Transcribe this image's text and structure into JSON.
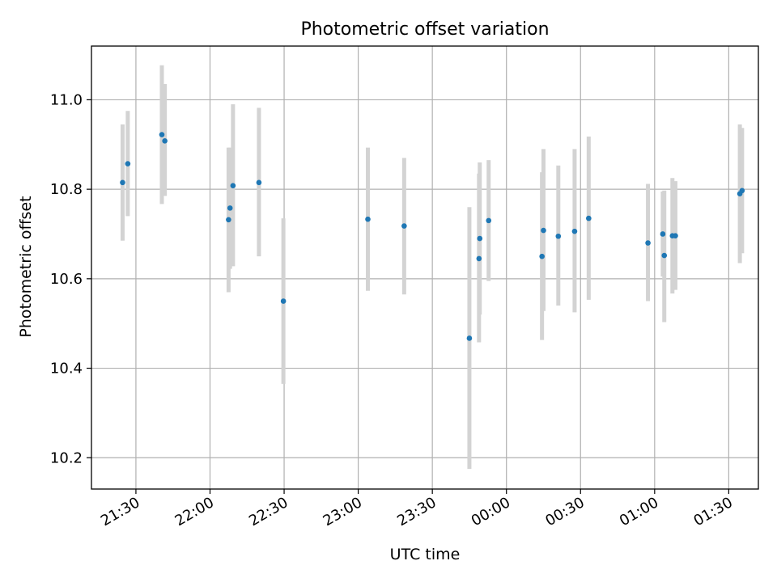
{
  "chart_data": {
    "type": "scatter",
    "title": "Photometric offset variation",
    "xlabel": "UTC time",
    "ylabel": "Photometric offset",
    "x_unit": "hours after 21:30",
    "xlim": [
      -0.3,
      4.2
    ],
    "ylim": [
      10.13,
      11.12
    ],
    "grid": true,
    "x_ticks": [
      {
        "value": 0.0,
        "label": "21:30"
      },
      {
        "value": 0.5,
        "label": "22:00"
      },
      {
        "value": 1.0,
        "label": "22:30"
      },
      {
        "value": 1.5,
        "label": "23:00"
      },
      {
        "value": 2.0,
        "label": "23:30"
      },
      {
        "value": 2.5,
        "label": "00:00"
      },
      {
        "value": 3.0,
        "label": "00:30"
      },
      {
        "value": 3.5,
        "label": "01:00"
      },
      {
        "value": 4.0,
        "label": "01:30"
      }
    ],
    "y_ticks": [
      {
        "value": 10.2,
        "label": "10.2"
      },
      {
        "value": 10.4,
        "label": "10.4"
      },
      {
        "value": 10.6,
        "label": "10.6"
      },
      {
        "value": 10.8,
        "label": "10.8"
      },
      {
        "value": 11.0,
        "label": "11.0"
      }
    ],
    "series": [
      {
        "color": "#1f77b4",
        "error_color": "#d3d3d3",
        "points": [
          {
            "x": -0.09,
            "y": 10.815,
            "lo": 10.685,
            "hi": 10.945
          },
          {
            "x": -0.055,
            "y": 10.857,
            "lo": 10.74,
            "hi": 10.975
          },
          {
            "x": 0.175,
            "y": 10.922,
            "lo": 10.767,
            "hi": 11.077
          },
          {
            "x": 0.195,
            "y": 10.908,
            "lo": 10.785,
            "hi": 11.035
          },
          {
            "x": 0.625,
            "y": 10.732,
            "lo": 10.57,
            "hi": 10.893
          },
          {
            "x": 0.635,
            "y": 10.758,
            "lo": 10.622,
            "hi": 10.893
          },
          {
            "x": 0.655,
            "y": 10.808,
            "lo": 10.628,
            "hi": 10.99
          },
          {
            "x": 0.83,
            "y": 10.815,
            "lo": 10.65,
            "hi": 10.982
          },
          {
            "x": 0.995,
            "y": 10.55,
            "lo": 10.365,
            "hi": 10.735
          },
          {
            "x": 1.565,
            "y": 10.733,
            "lo": 10.573,
            "hi": 10.893
          },
          {
            "x": 1.81,
            "y": 10.718,
            "lo": 10.565,
            "hi": 10.87
          },
          {
            "x": 2.25,
            "y": 10.467,
            "lo": 10.175,
            "hi": 10.76
          },
          {
            "x": 2.315,
            "y": 10.645,
            "lo": 10.458,
            "hi": 10.835
          },
          {
            "x": 2.32,
            "y": 10.69,
            "lo": 10.52,
            "hi": 10.86
          },
          {
            "x": 2.38,
            "y": 10.73,
            "lo": 10.595,
            "hi": 10.865
          },
          {
            "x": 2.74,
            "y": 10.65,
            "lo": 10.463,
            "hi": 10.838
          },
          {
            "x": 2.75,
            "y": 10.708,
            "lo": 10.528,
            "hi": 10.89
          },
          {
            "x": 2.85,
            "y": 10.695,
            "lo": 10.54,
            "hi": 10.853
          },
          {
            "x": 2.96,
            "y": 10.706,
            "lo": 10.525,
            "hi": 10.89
          },
          {
            "x": 3.055,
            "y": 10.735,
            "lo": 10.553,
            "hi": 10.918
          },
          {
            "x": 3.455,
            "y": 10.68,
            "lo": 10.55,
            "hi": 10.812
          },
          {
            "x": 3.555,
            "y": 10.7,
            "lo": 10.605,
            "hi": 10.795
          },
          {
            "x": 3.565,
            "y": 10.652,
            "lo": 10.503,
            "hi": 10.797
          },
          {
            "x": 3.62,
            "y": 10.696,
            "lo": 10.567,
            "hi": 10.825
          },
          {
            "x": 3.64,
            "y": 10.696,
            "lo": 10.575,
            "hi": 10.818
          },
          {
            "x": 4.075,
            "y": 10.79,
            "lo": 10.635,
            "hi": 10.945
          },
          {
            "x": 4.09,
            "y": 10.797,
            "lo": 10.657,
            "hi": 10.937
          }
        ]
      }
    ]
  }
}
